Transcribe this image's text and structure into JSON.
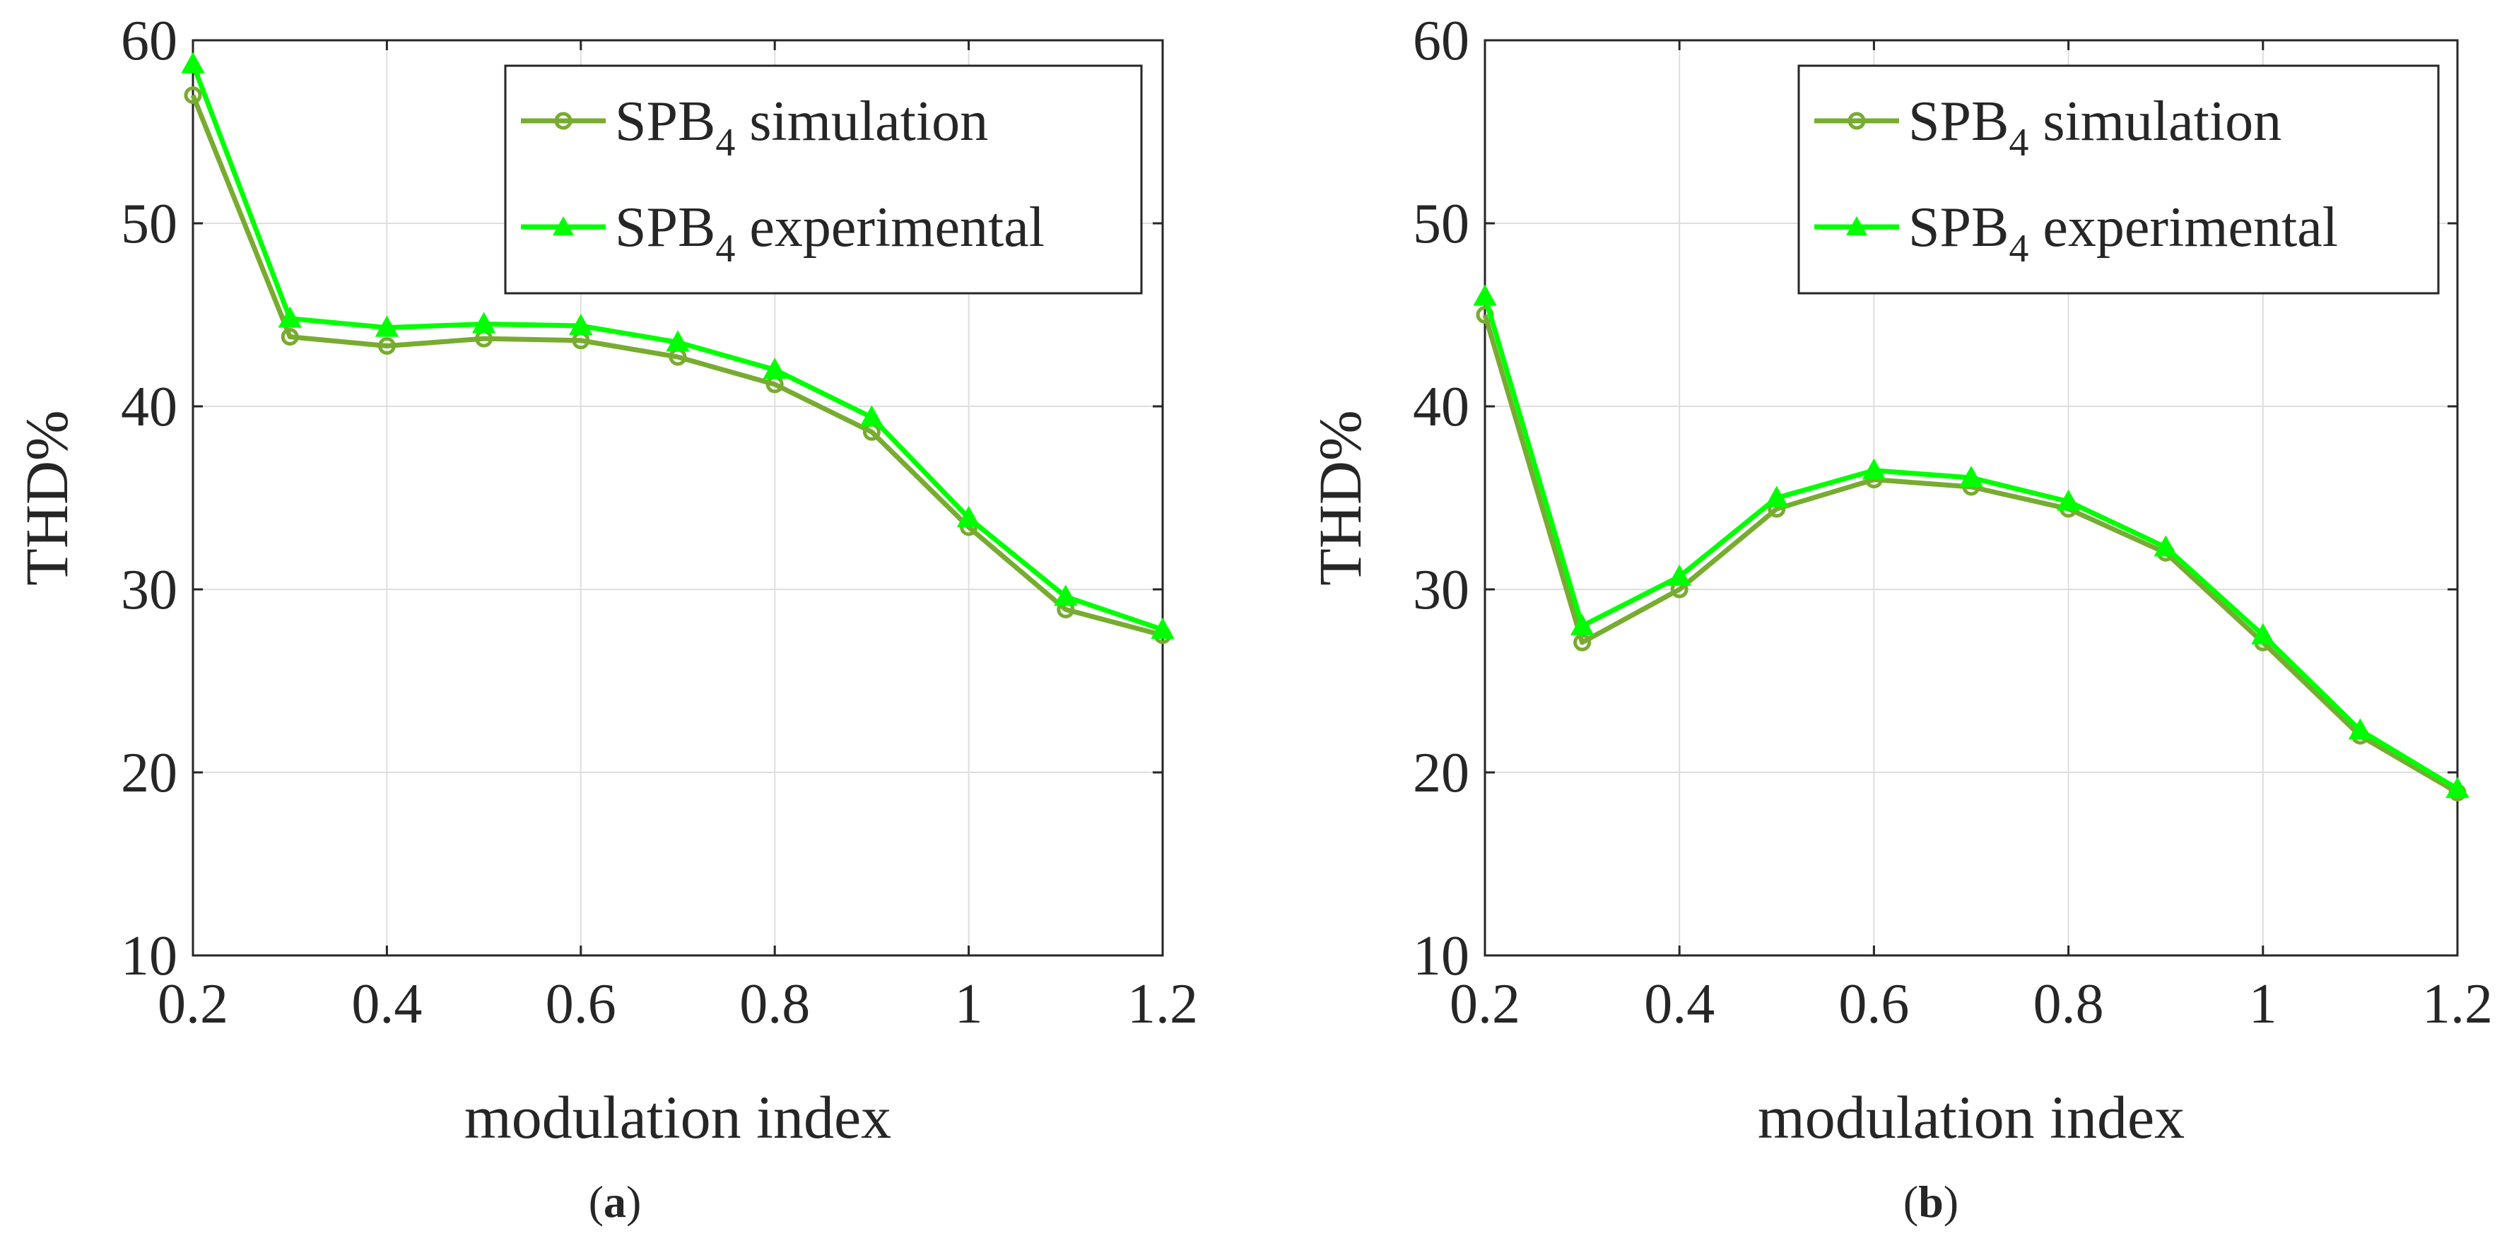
{
  "chart_data": [
    {
      "type": "line",
      "panel_label": "a",
      "xlabel": "modulation index",
      "ylabel": "THD%",
      "xlim": [
        0.2,
        1.2
      ],
      "ylim": [
        10,
        60
      ],
      "xticks": [
        "0.2",
        "0.4",
        "0.6",
        "0.8",
        "1",
        "1.2"
      ],
      "yticks": [
        "10",
        "20",
        "30",
        "40",
        "50",
        "60"
      ],
      "grid": true,
      "legend_position": "top-right",
      "x": [
        0.2,
        0.3,
        0.4,
        0.5,
        0.6,
        0.7,
        0.8,
        0.9,
        1.0,
        1.1,
        1.2
      ],
      "series": [
        {
          "name_main": "SPB",
          "name_sub": "4",
          "name_rest": " simulation",
          "color": "#77ac30",
          "marker": "circle",
          "values": [
            57.0,
            43.8,
            43.3,
            43.7,
            43.6,
            42.7,
            41.2,
            38.6,
            33.4,
            28.9,
            27.5
          ]
        },
        {
          "name_main": "SPB",
          "name_sub": "4",
          "name_rest": " experimental",
          "color": "#00ff00",
          "marker": "triangle",
          "values": [
            58.7,
            44.8,
            44.3,
            44.5,
            44.4,
            43.5,
            42.0,
            39.4,
            33.9,
            29.6,
            27.8
          ]
        }
      ]
    },
    {
      "type": "line",
      "panel_label": "b",
      "xlabel": "modulation index",
      "ylabel": "THD%",
      "xlim": [
        0.2,
        1.2
      ],
      "ylim": [
        10,
        60
      ],
      "xticks": [
        "0.2",
        "0.4",
        "0.6",
        "0.8",
        "1",
        "1.2"
      ],
      "yticks": [
        "10",
        "20",
        "30",
        "40",
        "50",
        "60"
      ],
      "grid": true,
      "legend_position": "top-right",
      "x": [
        0.2,
        0.3,
        0.4,
        0.5,
        0.6,
        0.7,
        0.8,
        0.9,
        1.0,
        1.1,
        1.2
      ],
      "series": [
        {
          "name_main": "SPB",
          "name_sub": "4",
          "name_rest": " simulation",
          "color": "#77ac30",
          "marker": "circle",
          "values": [
            45.0,
            27.1,
            30.0,
            34.4,
            36.0,
            35.6,
            34.4,
            32.0,
            27.1,
            22.0,
            18.9
          ]
        },
        {
          "name_main": "SPB",
          "name_sub": "4",
          "name_rest": " experimental",
          "color": "#00ff00",
          "marker": "triangle",
          "values": [
            46.0,
            28.0,
            30.7,
            35.0,
            36.5,
            36.1,
            34.8,
            32.3,
            27.5,
            22.3,
            19.1
          ]
        }
      ]
    }
  ]
}
